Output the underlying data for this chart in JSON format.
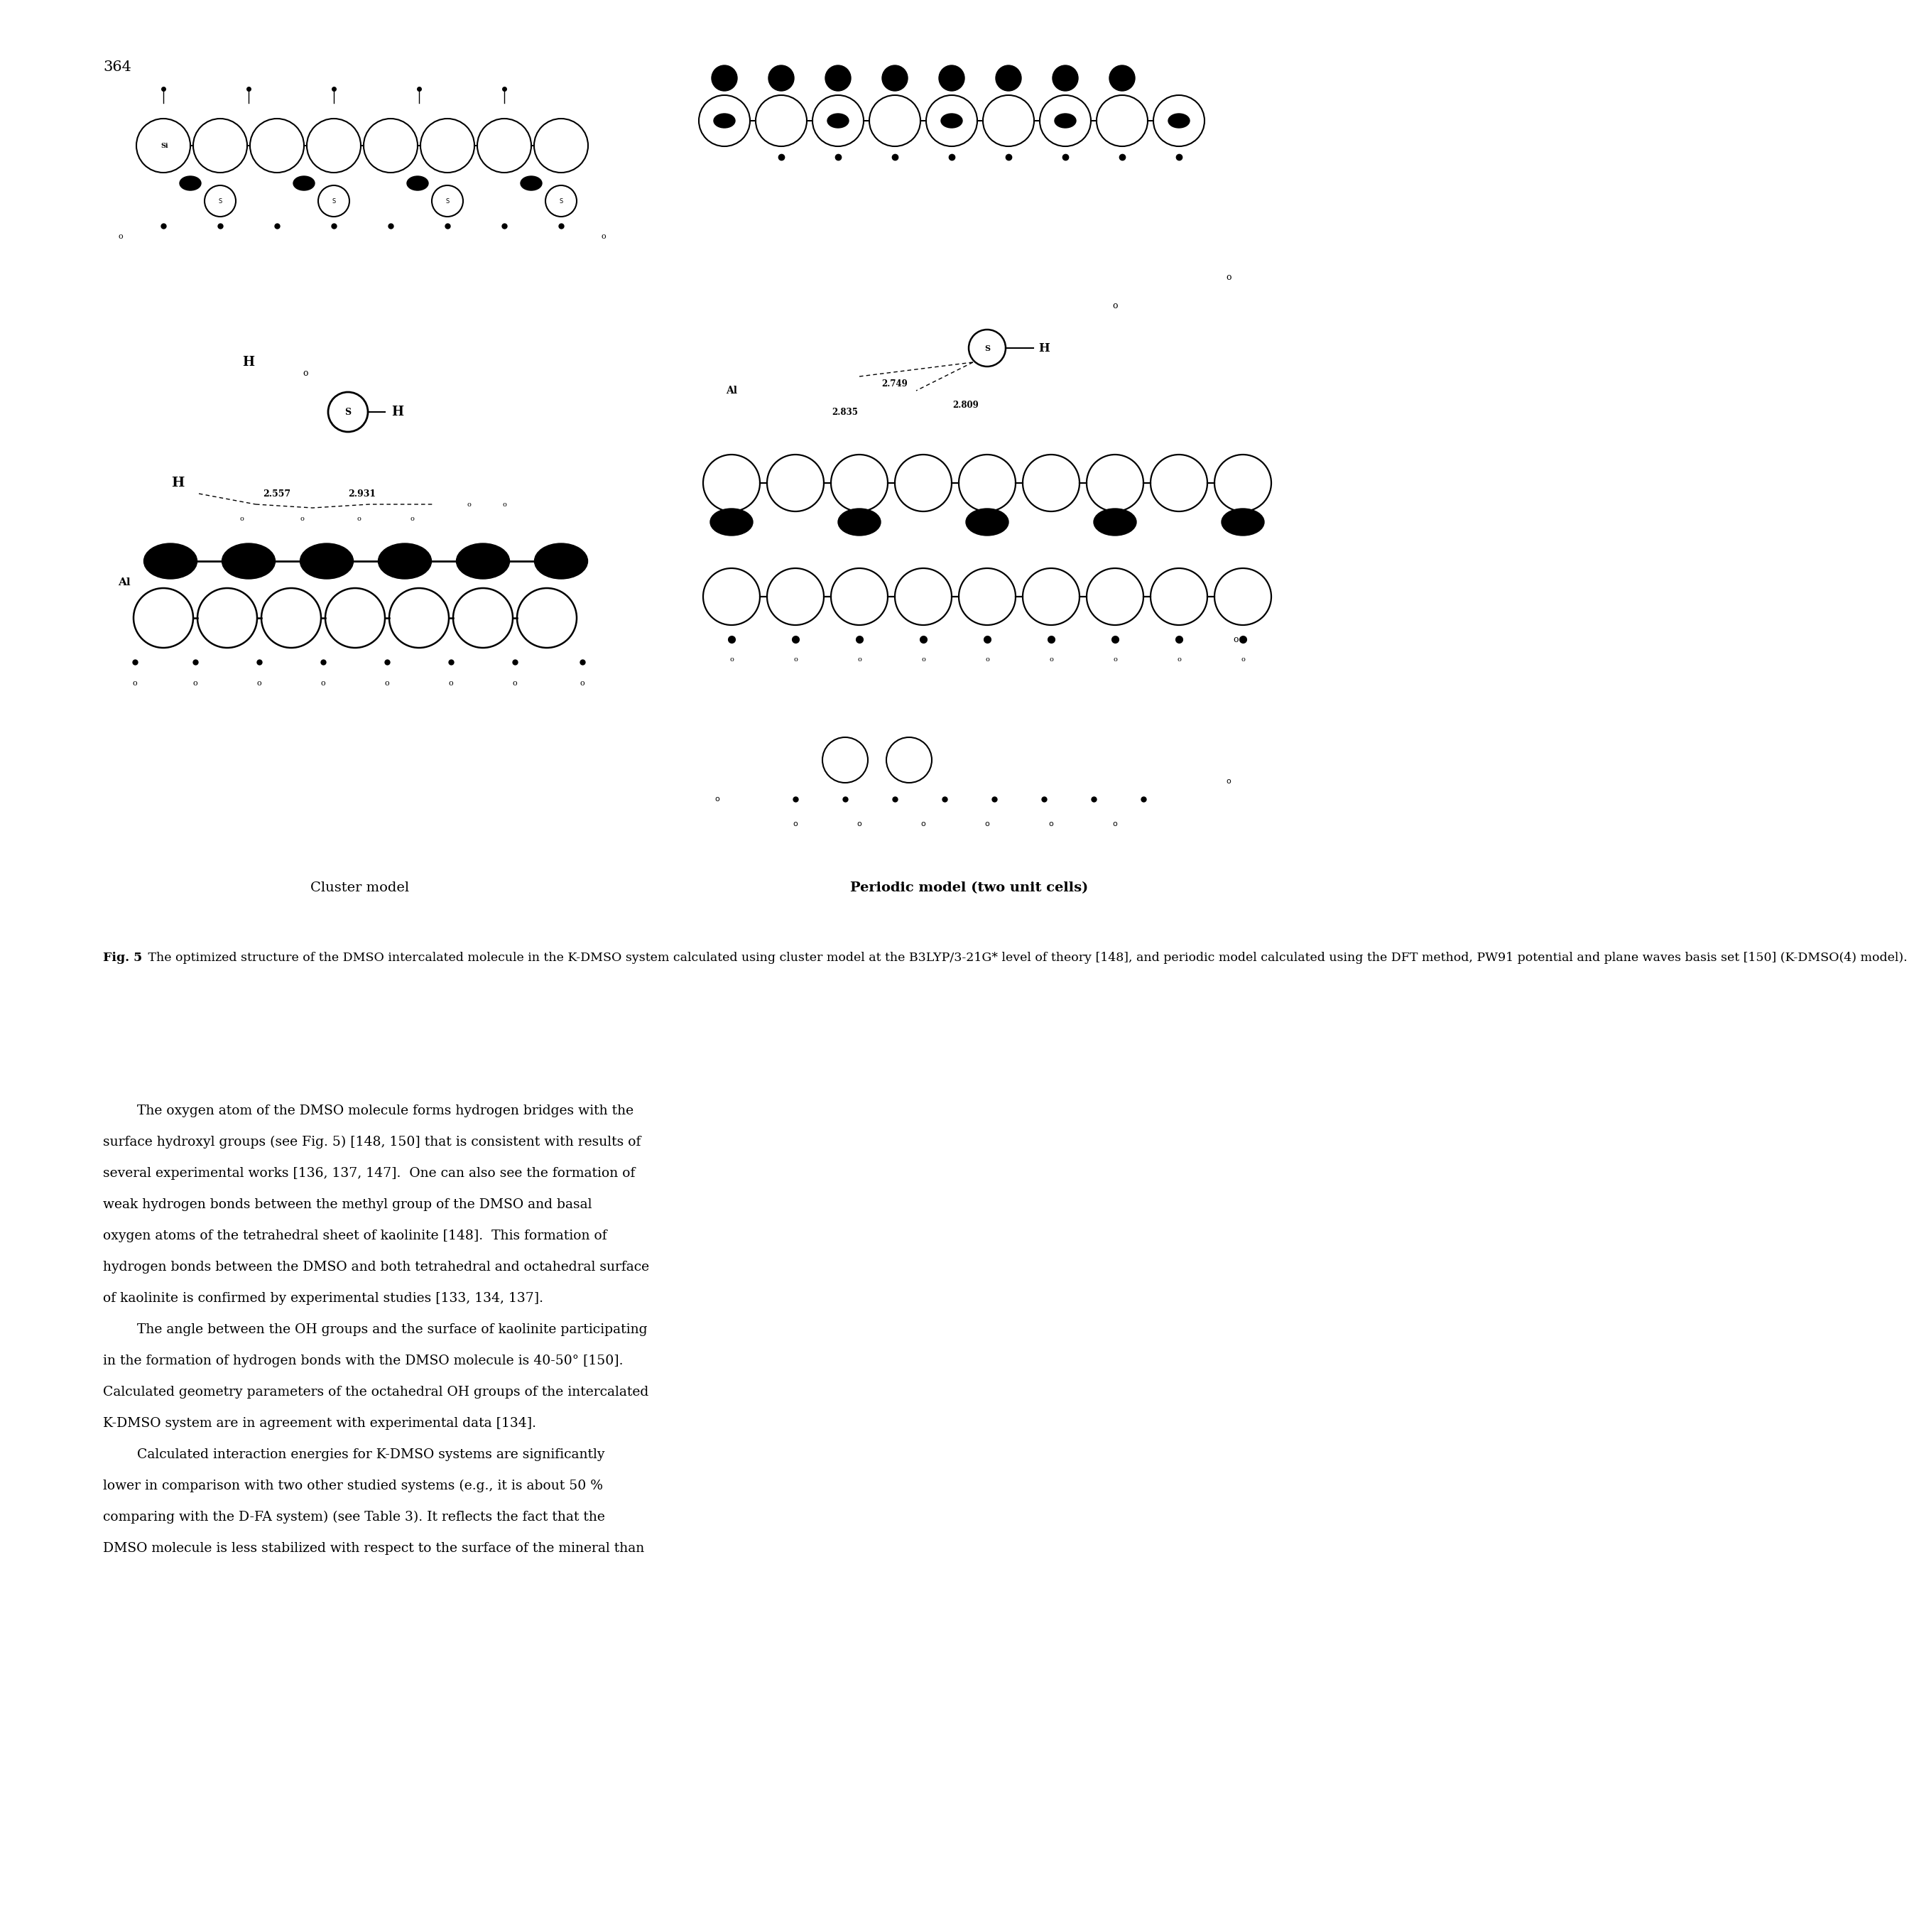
{
  "page_number": "364",
  "fig_caption_bold": "Fig. 5",
  "fig_caption_normal": " The optimized structure of the DMSO intercalated molecule in the K-DMSO system calculated using cluster model at the B3LYP/3-21G* level of theory [148], and periodic model calculated using the DFT method, PW91 potential and plane waves basis set [150] (K-DMSO(4) model).",
  "cluster_label": "Cluster model",
  "periodic_label": "Periodic model (two unit cells)",
  "para1_indent": "        The oxygen atom of the DMSO molecule forms hydrogen bridges with the surface hydroxyl groups (see Fig. 5) [148, 150] that is consistent with results of several experimental works [136, 137, 147].  One can also see the formation of weak hydrogen bonds between the methyl group of the DMSO and basal oxygen atoms of the tetrahedral sheet of kaolinite [148].  This formation of hydrogen bonds between the DMSO and both tetrahedral and octahedral surface of kaolinite is confirmed by experimental studies [133, 134, 137].",
  "para2_indent": "        The angle between the OH groups and the surface of kaolinite participating in the formation of hydrogen bonds with the DMSO molecule is 40-50° [150]. Calculated geometry parameters of the octahedral OH groups of the intercalated K-DMSO system are in agreement with experimental data [134].",
  "para3_indent": "        Calculated interaction energies for K-DMSO systems are significantly lower in comparison with two other studied systems (e.g., it is about 50 % comparing with the D-FA system) (see Table 3). It reflects the fact that the DMSO molecule is less stabilized with respect to the surface of the mineral than",
  "bg_color": "#ffffff",
  "text_color": "#000000"
}
